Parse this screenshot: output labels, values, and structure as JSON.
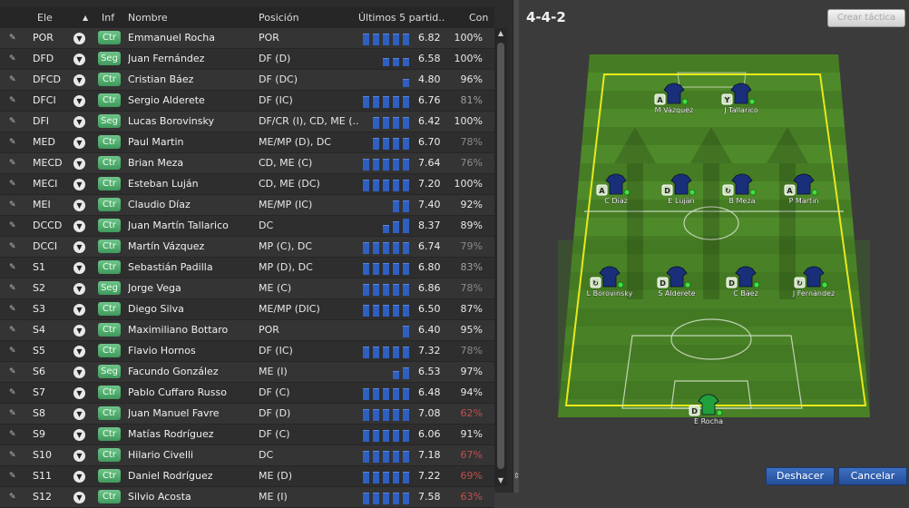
{
  "table": {
    "headers": {
      "ele": "Ele",
      "sort_icon": "sort-up-icon",
      "inf": "Inf",
      "nombre": "Nombre",
      "posicion": "Posición",
      "ultimos": "Últimos 5 partid..",
      "con": "Con"
    },
    "rows": [
      {
        "pos": "POR",
        "inf": "Ctr",
        "name": "Emmanuel Rocha",
        "role": "POR",
        "form": [
          3,
          3,
          3,
          3,
          3
        ],
        "rating": "6.82",
        "cond": "100%",
        "cond_color": "#e8e8e8"
      },
      {
        "pos": "DFD",
        "inf": "Seg",
        "name": "Juan Fernández",
        "role": "DF (D)",
        "form": [
          0,
          0,
          2,
          2,
          2
        ],
        "rating": "6.58",
        "cond": "100%",
        "cond_color": "#e8e8e8"
      },
      {
        "pos": "DFCD",
        "inf": "Ctr",
        "name": "Cristian Báez",
        "role": "DF (DC)",
        "form": [
          0,
          0,
          0,
          0,
          2
        ],
        "rating": "4.80",
        "cond": "96%",
        "cond_color": "#e8e8e8"
      },
      {
        "pos": "DFCI",
        "inf": "Ctr",
        "name": "Sergio Alderete",
        "role": "DF (IC)",
        "form": [
          3,
          3,
          3,
          3,
          3
        ],
        "rating": "6.76",
        "cond": "81%",
        "cond_color": "#a0a0a0"
      },
      {
        "pos": "DFI",
        "inf": "Seg",
        "name": "Lucas Borovinsky",
        "role": "DF/CR (I), CD, ME (..",
        "form": [
          0,
          3,
          3,
          3,
          3
        ],
        "rating": "6.42",
        "cond": "100%",
        "cond_color": "#e8e8e8"
      },
      {
        "pos": "MED",
        "inf": "Ctr",
        "name": "Paul Martin",
        "role": "ME/MP (D), DC",
        "form": [
          0,
          3,
          3,
          3,
          3
        ],
        "rating": "6.70",
        "cond": "78%",
        "cond_color": "#8a8a8a"
      },
      {
        "pos": "MECD",
        "inf": "Ctr",
        "name": "Brian Meza",
        "role": "CD, ME (C)",
        "form": [
          3,
          3,
          3,
          3,
          3
        ],
        "rating": "7.64",
        "cond": "76%",
        "cond_color": "#8a8a8a"
      },
      {
        "pos": "MECI",
        "inf": "Ctr",
        "name": "Esteban Luján",
        "role": "CD, ME (DC)",
        "form": [
          3,
          3,
          3,
          3,
          3
        ],
        "rating": "7.20",
        "cond": "100%",
        "cond_color": "#e8e8e8"
      },
      {
        "pos": "MEI",
        "inf": "Ctr",
        "name": "Claudio Díaz",
        "role": "ME/MP (IC)",
        "form": [
          0,
          0,
          0,
          3,
          3
        ],
        "rating": "7.40",
        "cond": "92%",
        "cond_color": "#e8e8e8"
      },
      {
        "pos": "DCCD",
        "inf": "Ctr",
        "name": "Juan Martín Tallarico",
        "role": "DC",
        "form": [
          0,
          0,
          2,
          3,
          4
        ],
        "rating": "8.37",
        "cond": "89%",
        "cond_color": "#e8e8e8"
      },
      {
        "pos": "DCCI",
        "inf": "Ctr",
        "name": "Martín Vázquez",
        "role": "MP (C), DC",
        "form": [
          3,
          3,
          3,
          3,
          3
        ],
        "rating": "6.74",
        "cond": "79%",
        "cond_color": "#8a8a8a"
      },
      {
        "pos": "S1",
        "inf": "Ctr",
        "name": "Sebastián Padilla",
        "role": "MP (D), DC",
        "form": [
          3,
          3,
          3,
          3,
          3
        ],
        "rating": "6.80",
        "cond": "83%",
        "cond_color": "#a0a0a0"
      },
      {
        "pos": "S2",
        "inf": "Seg",
        "name": "Jorge Vega",
        "role": "ME (C)",
        "form": [
          3,
          3,
          3,
          3,
          3
        ],
        "rating": "6.86",
        "cond": "78%",
        "cond_color": "#8a8a8a"
      },
      {
        "pos": "S3",
        "inf": "Ctr",
        "name": "Diego Silva",
        "role": "ME/MP (DIC)",
        "form": [
          3,
          3,
          3,
          3,
          3
        ],
        "rating": "6.50",
        "cond": "87%",
        "cond_color": "#e8e8e8"
      },
      {
        "pos": "S4",
        "inf": "Ctr",
        "name": "Maximiliano Bottaro",
        "role": "POR",
        "form": [
          0,
          0,
          0,
          0,
          3
        ],
        "rating": "6.40",
        "cond": "95%",
        "cond_color": "#e8e8e8"
      },
      {
        "pos": "S5",
        "inf": "Ctr",
        "name": "Flavio Hornos",
        "role": "DF (IC)",
        "form": [
          3,
          3,
          3,
          3,
          3
        ],
        "rating": "7.32",
        "cond": "78%",
        "cond_color": "#8a8a8a"
      },
      {
        "pos": "S6",
        "inf": "Seg",
        "name": "Facundo González",
        "role": "ME (I)",
        "form": [
          0,
          0,
          0,
          2,
          3
        ],
        "rating": "6.53",
        "cond": "97%",
        "cond_color": "#e8e8e8"
      },
      {
        "pos": "S7",
        "inf": "Ctr",
        "name": "Pablo Cuffaro Russo",
        "role": "DF (C)",
        "form": [
          3,
          3,
          3,
          3,
          3
        ],
        "rating": "6.48",
        "cond": "94%",
        "cond_color": "#e8e8e8"
      },
      {
        "pos": "S8",
        "inf": "Ctr",
        "name": "Juan Manuel Favre",
        "role": "DF (D)",
        "form": [
          3,
          3,
          3,
          3,
          3
        ],
        "rating": "7.08",
        "cond": "62%",
        "cond_color": "#c0504d"
      },
      {
        "pos": "S9",
        "inf": "Ctr",
        "name": "Matías Rodríguez",
        "role": "DF (C)",
        "form": [
          3,
          3,
          3,
          3,
          3
        ],
        "rating": "6.06",
        "cond": "91%",
        "cond_color": "#e8e8e8"
      },
      {
        "pos": "S10",
        "inf": "Ctr",
        "name": "Hilario Civelli",
        "role": "DC",
        "form": [
          3,
          3,
          3,
          3,
          3
        ],
        "rating": "7.18",
        "cond": "67%",
        "cond_color": "#c0504d"
      },
      {
        "pos": "S11",
        "inf": "Ctr",
        "name": "Daniel Rodríguez",
        "role": "ME (D)",
        "form": [
          3,
          3,
          3,
          3,
          3
        ],
        "rating": "7.22",
        "cond": "69%",
        "cond_color": "#c0504d"
      },
      {
        "pos": "S12",
        "inf": "Ctr",
        "name": "Silvio Acosta",
        "role": "ME (I)",
        "form": [
          3,
          3,
          3,
          3,
          3
        ],
        "rating": "7.58",
        "cond": "63%",
        "cond_color": "#c0504d"
      }
    ]
  },
  "tactic": {
    "title": "4-4-2",
    "create_label": "Crear táctica",
    "players": [
      {
        "name": "M Vázquez",
        "role": "A"
      },
      {
        "name": "J Tallarico",
        "role": "Y"
      },
      {
        "name": "C Díaz",
        "role": "A"
      },
      {
        "name": "E Luján",
        "role": "D"
      },
      {
        "name": "B Meza",
        "role": "↻"
      },
      {
        "name": "P Martín",
        "role": "A"
      },
      {
        "name": "L Borovinsky",
        "role": "↻"
      },
      {
        "name": "S Alderete",
        "role": "D"
      },
      {
        "name": "C Báez",
        "role": "D"
      },
      {
        "name": "J Fernández",
        "role": "↻"
      },
      {
        "name": "E Rocha",
        "role": "D"
      }
    ],
    "undo_label": "Deshacer",
    "cancel_label": "Cancelar"
  },
  "colors": {
    "form_bar": "#2f5fbf",
    "badge": "#4fae6c",
    "pitch": "#4f8a2a",
    "outline": "#e8e81a",
    "shirt": "#1a2f7a",
    "keeper_shirt": "#1fa03a",
    "button": "#2f5fae"
  }
}
